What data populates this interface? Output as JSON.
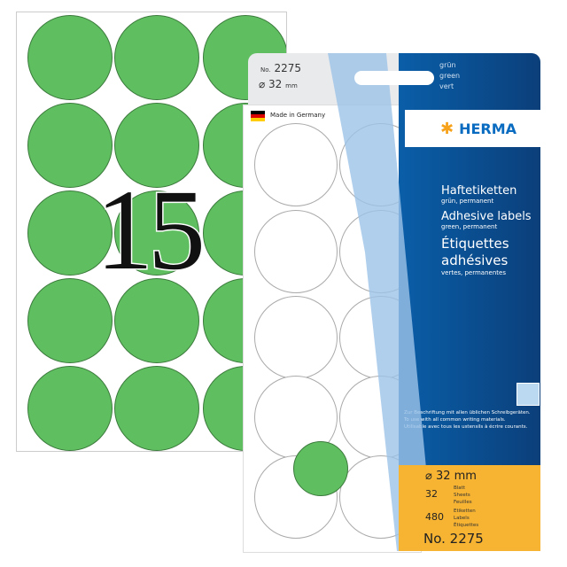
{
  "back_sheet": {
    "big_number": "15"
  },
  "package": {
    "number_label": "No.",
    "number": "2275",
    "diameter": "⌀ 32",
    "diameter_unit": "mm",
    "colors": [
      "grün",
      "green",
      "vert"
    ],
    "made_in": "Made in Germany",
    "brand": "HERMA",
    "titles": [
      {
        "title": "Haftetiketten",
        "sub": "grün, permanent"
      },
      {
        "title": "Adhesive labels",
        "sub": "green, permanent"
      },
      {
        "title": "Étiquettes adhésives",
        "sub": "vertes, permanentes"
      }
    ],
    "writing_note": [
      "Zur Beschriftung mit allen üblichen Schreibgeräten.",
      "To use with all common writing materials.",
      "Utilisable avec tous les ustensils à écrire courants."
    ],
    "spec_diameter": "⌀ 32 mm",
    "sheets_count": "32",
    "sheets_labels": [
      "Blatt",
      "Sheets",
      "Feuilles"
    ],
    "labels_count": "480",
    "labels_labels": [
      "Etiketten",
      "Labels",
      "Étiquettes"
    ],
    "product_no": "No. 2275",
    "accent_colors": {
      "green": "#5fbf60",
      "blue": "#0a5ea8",
      "orange": "#f7b432"
    }
  }
}
